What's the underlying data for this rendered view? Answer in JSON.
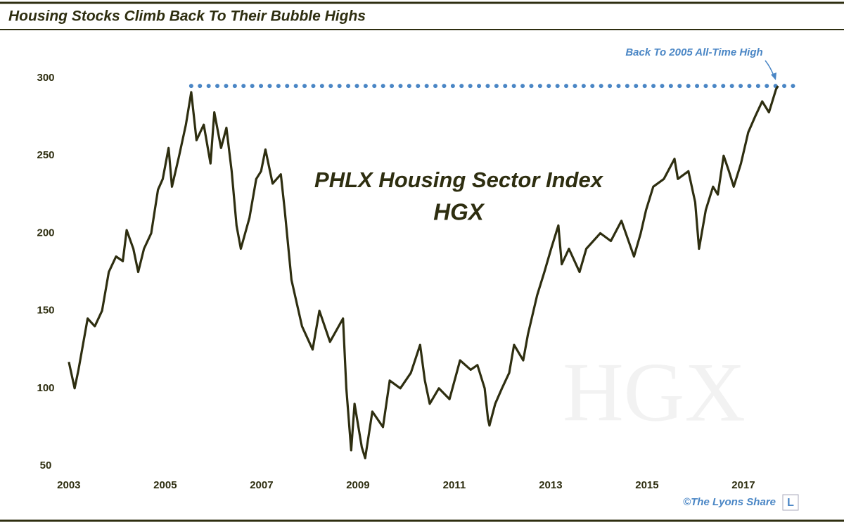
{
  "chart_data": {
    "type": "line",
    "title": "Housing Stocks Climb Back To Their Bubble Highs",
    "annotation_title": "PHLX Housing Sector Index",
    "annotation_subtitle": "HGX",
    "watermark": "HGX",
    "callout": "Back To 2005 All-Time High",
    "credit": "©The Lyons Share",
    "logo": "L",
    "color": "#2e2e10",
    "reference_line": {
      "value": 295,
      "x": [
        2005.54,
        2018.1
      ],
      "color": "#4a86c5"
    },
    "xlim": [
      2002.9,
      2018.3
    ],
    "ylim": [
      45,
      325
    ],
    "xticks": [
      2003,
      2005,
      2007,
      2009,
      2011,
      2013,
      2015,
      2017
    ],
    "yticks": [
      50,
      100,
      150,
      200,
      250,
      300
    ],
    "x": [
      2003.0,
      2003.12,
      2003.2,
      2003.39,
      2003.54,
      2003.69,
      2003.83,
      2003.98,
      2004.12,
      2004.2,
      2004.34,
      2004.44,
      2004.56,
      2004.71,
      2004.85,
      2004.95,
      2005.07,
      2005.14,
      2005.29,
      2005.43,
      2005.54,
      2005.65,
      2005.8,
      2005.94,
      2006.02,
      2006.16,
      2006.27,
      2006.38,
      2006.48,
      2006.57,
      2006.75,
      2006.89,
      2006.99,
      2007.08,
      2007.23,
      2007.4,
      2007.48,
      2007.62,
      2007.84,
      2008.06,
      2008.2,
      2008.42,
      2008.69,
      2008.76,
      2008.86,
      2008.93,
      2009.08,
      2009.15,
      2009.3,
      2009.52,
      2009.66,
      2009.88,
      2010.1,
      2010.29,
      2010.39,
      2010.49,
      2010.68,
      2010.9,
      2011.05,
      2011.12,
      2011.34,
      2011.48,
      2011.63,
      2011.7,
      2011.73,
      2011.85,
      2011.99,
      2012.14,
      2012.24,
      2012.43,
      2012.53,
      2012.72,
      2012.87,
      2013.01,
      2013.16,
      2013.23,
      2013.38,
      2013.6,
      2013.74,
      2014.03,
      2014.25,
      2014.47,
      2014.73,
      2014.87,
      2014.98,
      2015.13,
      2015.35,
      2015.57,
      2015.64,
      2015.86,
      2016.0,
      2016.08,
      2016.22,
      2016.37,
      2016.47,
      2016.59,
      2016.7,
      2016.8,
      2016.95,
      2017.1,
      2017.24,
      2017.39,
      2017.53,
      2017.68,
      2017.72
    ],
    "values": [
      117,
      100,
      112,
      145,
      140,
      150,
      175,
      185,
      182,
      202,
      190,
      175,
      190,
      200,
      228,
      235,
      255,
      230,
      250,
      270,
      291,
      260,
      270,
      245,
      278,
      255,
      268,
      240,
      205,
      190,
      210,
      235,
      240,
      254,
      232,
      238,
      215,
      170,
      140,
      125,
      150,
      130,
      145,
      100,
      60,
      90,
      62,
      55,
      85,
      75,
      105,
      100,
      110,
      128,
      105,
      90,
      100,
      93,
      110,
      118,
      112,
      115,
      100,
      80,
      76,
      90,
      100,
      110,
      128,
      118,
      135,
      160,
      175,
      190,
      205,
      180,
      190,
      175,
      190,
      200,
      195,
      208,
      185,
      200,
      215,
      230,
      235,
      248,
      235,
      240,
      220,
      190,
      215,
      230,
      225,
      250,
      240,
      230,
      245,
      265,
      275,
      285,
      278,
      293,
      295
    ]
  }
}
